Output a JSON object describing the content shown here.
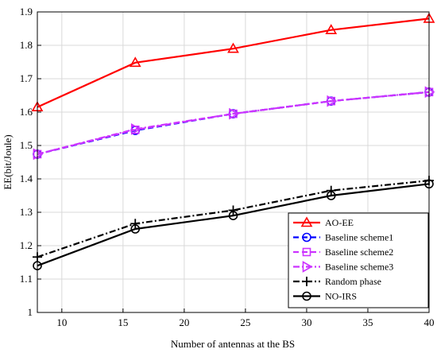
{
  "chart_data": {
    "type": "line",
    "xlabel": "Number of antennas at the BS",
    "ylabel": "EE(bit/Joule)",
    "xlim": [
      8,
      40
    ],
    "ylim": [
      1,
      1.9
    ],
    "x_ticks": [
      10,
      15,
      20,
      25,
      30,
      35,
      40
    ],
    "y_ticks": [
      1,
      1.1,
      1.2,
      1.3,
      1.4,
      1.5,
      1.6,
      1.7,
      1.8,
      1.9
    ],
    "grid": true,
    "legend_position": "bottom-right",
    "x": [
      8,
      16,
      24,
      32,
      40
    ],
    "series": [
      {
        "name": "AO-EE",
        "values": [
          1.615,
          1.748,
          1.79,
          1.846,
          1.88
        ],
        "color": "#ff0000",
        "marker": "triangle-up",
        "dash": "solid"
      },
      {
        "name": "Baseline scheme1",
        "values": [
          1.474,
          1.545,
          1.595,
          1.633,
          1.66
        ],
        "color": "#0000ff",
        "marker": "circle",
        "dash": "dash"
      },
      {
        "name": "Baseline scheme2",
        "values": [
          1.474,
          1.547,
          1.595,
          1.633,
          1.66
        ],
        "color": "#cc33ff",
        "marker": "square",
        "dash": "dash"
      },
      {
        "name": "Baseline scheme3",
        "values": [
          1.474,
          1.549,
          1.595,
          1.633,
          1.66
        ],
        "color": "#cc33ff",
        "marker": "triangle-right",
        "dash": "dashdot"
      },
      {
        "name": "Random phase",
        "values": [
          1.166,
          1.266,
          1.306,
          1.365,
          1.395
        ],
        "color": "#000000",
        "marker": "plus",
        "dash": "dashdot"
      },
      {
        "name": "NO-IRS",
        "values": [
          1.14,
          1.25,
          1.29,
          1.35,
          1.385
        ],
        "color": "#000000",
        "marker": "circle",
        "dash": "solid"
      }
    ]
  }
}
